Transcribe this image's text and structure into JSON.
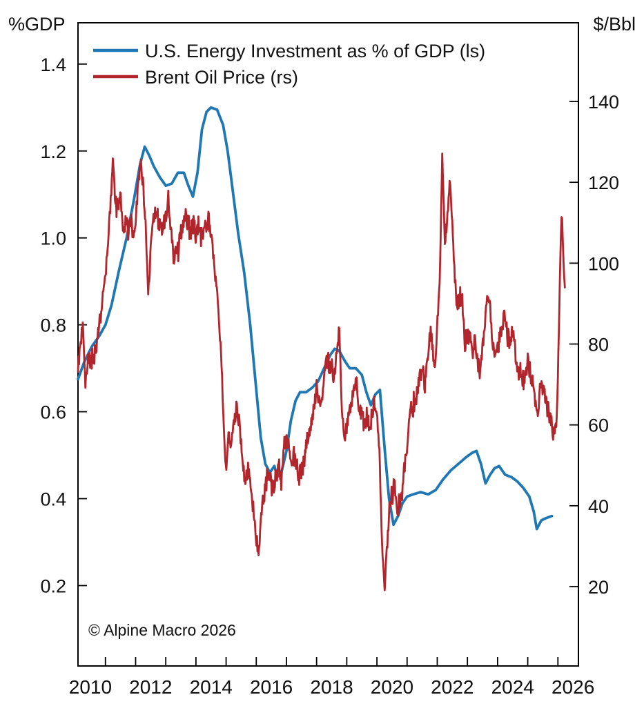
{
  "page": {
    "background": "#ffffff"
  },
  "axis_units": {
    "left": "%GDP",
    "right": "$/Bbl"
  },
  "legend": {
    "position": "top-left",
    "items": [
      {
        "label": "U.S. Energy Investment as % of GDP (ls)",
        "color": "#1f77b4"
      },
      {
        "label": "Brent Oil Price (rs)",
        "color": "#b1252c"
      }
    ]
  },
  "watermark": "© Alpine Macro 2026",
  "chart_data": {
    "type": "line",
    "title": "",
    "grid": false,
    "legend_position": "top-left",
    "x_axis": {
      "range": [
        2010.09,
        2026.68
      ],
      "tick_years": [
        2011,
        2012,
        2013,
        2014,
        2015,
        2016,
        2017,
        2018,
        2019,
        2020,
        2021,
        2022,
        2023,
        2024,
        2025,
        2026
      ],
      "label_years": [
        2010,
        2012,
        2014,
        2016,
        2018,
        2020,
        2022,
        2024,
        2026
      ],
      "labels_centered_mid_year": true
    },
    "left_axis": {
      "unit": "%GDP",
      "range": [
        0.015,
        1.495
      ],
      "ticks": [
        0.2,
        0.4,
        0.6,
        0.8,
        1.0,
        1.2,
        1.4
      ]
    },
    "right_axis": {
      "unit": "$/Bbl",
      "range": [
        0.37,
        159.46
      ],
      "ticks": [
        20,
        40,
        60,
        80,
        100,
        120,
        140
      ]
    },
    "series": [
      {
        "name": "U.S. Energy Investment as % of GDP",
        "scale": "left",
        "color": "#1f77b4",
        "points": [
          [
            2010.09,
            0.675
          ],
          [
            2010.3,
            0.715
          ],
          [
            2010.55,
            0.75
          ],
          [
            2010.8,
            0.775
          ],
          [
            2011.0,
            0.8
          ],
          [
            2011.2,
            0.845
          ],
          [
            2011.45,
            0.925
          ],
          [
            2011.7,
            1.0
          ],
          [
            2011.95,
            1.09
          ],
          [
            2012.15,
            1.17
          ],
          [
            2012.3,
            1.21
          ],
          [
            2012.45,
            1.19
          ],
          [
            2012.6,
            1.165
          ],
          [
            2012.8,
            1.14
          ],
          [
            2013.0,
            1.12
          ],
          [
            2013.2,
            1.125
          ],
          [
            2013.4,
            1.15
          ],
          [
            2013.6,
            1.15
          ],
          [
            2013.75,
            1.12
          ],
          [
            2013.9,
            1.095
          ],
          [
            2014.05,
            1.15
          ],
          [
            2014.2,
            1.25
          ],
          [
            2014.35,
            1.29
          ],
          [
            2014.5,
            1.3
          ],
          [
            2014.7,
            1.295
          ],
          [
            2014.9,
            1.26
          ],
          [
            2015.05,
            1.2
          ],
          [
            2015.2,
            1.12
          ],
          [
            2015.4,
            1.01
          ],
          [
            2015.6,
            0.92
          ],
          [
            2015.8,
            0.8
          ],
          [
            2016.0,
            0.65
          ],
          [
            2016.15,
            0.54
          ],
          [
            2016.3,
            0.48
          ],
          [
            2016.45,
            0.46
          ],
          [
            2016.6,
            0.475
          ],
          [
            2016.7,
            0.45
          ],
          [
            2016.85,
            0.465
          ],
          [
            2017.0,
            0.51
          ],
          [
            2017.15,
            0.58
          ],
          [
            2017.3,
            0.625
          ],
          [
            2017.45,
            0.645
          ],
          [
            2017.65,
            0.645
          ],
          [
            2017.85,
            0.655
          ],
          [
            2018.05,
            0.67
          ],
          [
            2018.25,
            0.7
          ],
          [
            2018.45,
            0.73
          ],
          [
            2018.6,
            0.745
          ],
          [
            2018.75,
            0.74
          ],
          [
            2018.95,
            0.715
          ],
          [
            2019.1,
            0.7
          ],
          [
            2019.3,
            0.7
          ],
          [
            2019.5,
            0.685
          ],
          [
            2019.65,
            0.645
          ],
          [
            2019.8,
            0.615
          ],
          [
            2019.95,
            0.64
          ],
          [
            2020.1,
            0.65
          ],
          [
            2020.25,
            0.52
          ],
          [
            2020.4,
            0.4
          ],
          [
            2020.55,
            0.34
          ],
          [
            2020.7,
            0.36
          ],
          [
            2020.85,
            0.39
          ],
          [
            2021.0,
            0.405
          ],
          [
            2021.2,
            0.41
          ],
          [
            2021.45,
            0.415
          ],
          [
            2021.7,
            0.41
          ],
          [
            2021.95,
            0.42
          ],
          [
            2022.2,
            0.445
          ],
          [
            2022.45,
            0.465
          ],
          [
            2022.7,
            0.48
          ],
          [
            2022.95,
            0.495
          ],
          [
            2023.15,
            0.505
          ],
          [
            2023.3,
            0.51
          ],
          [
            2023.45,
            0.48
          ],
          [
            2023.6,
            0.435
          ],
          [
            2023.75,
            0.455
          ],
          [
            2023.9,
            0.47
          ],
          [
            2024.05,
            0.475
          ],
          [
            2024.25,
            0.455
          ],
          [
            2024.45,
            0.45
          ],
          [
            2024.65,
            0.44
          ],
          [
            2024.85,
            0.425
          ],
          [
            2025.05,
            0.405
          ],
          [
            2025.2,
            0.37
          ],
          [
            2025.3,
            0.33
          ],
          [
            2025.45,
            0.35
          ],
          [
            2025.6,
            0.355
          ],
          [
            2025.8,
            0.36
          ]
        ]
      },
      {
        "name": "Brent Oil Price",
        "scale": "right",
        "color": "#b1252c",
        "monthly_start_year": 2010.0,
        "monthly_values": [
          77,
          74,
          79,
          85,
          70,
          75,
          76,
          77,
          78,
          83,
          86,
          92,
          97,
          104,
          115,
          125,
          114,
          113,
          117,
          108,
          110,
          108,
          111,
          108,
          111,
          119,
          124,
          119,
          109,
          92,
          103,
          110,
          113,
          111,
          109,
          109,
          112,
          116,
          108,
          102,
          103,
          103,
          108,
          110,
          111,
          109,
          108,
          110,
          107,
          109,
          107,
          107,
          109,
          112,
          106,
          101,
          96,
          87,
          78,
          61,
          48,
          58,
          55,
          59,
          64,
          62,
          56,
          47,
          48,
          48,
          44,
          38,
          31,
          28,
          39,
          42,
          46,
          48,
          45,
          46,
          47,
          50,
          45,
          54,
          55,
          55,
          51,
          52,
          50,
          47,
          49,
          51,
          56,
          57,
          62,
          64,
          69,
          65,
          66,
          71,
          76,
          75,
          74,
          72,
          78,
          84,
          65,
          55,
          59,
          64,
          66,
          71,
          70,
          62,
          64,
          59,
          62,
          59,
          62,
          66,
          63,
          54,
          30,
          19,
          29,
          40,
          43,
          44,
          41,
          40,
          43,
          50,
          55,
          62,
          65,
          65,
          68,
          73,
          74,
          70,
          74,
          83,
          80,
          73,
          85,
          96,
          127,
          106,
          111,
          122,
          110,
          96,
          89,
          92,
          90,
          80,
          82,
          82,
          78,
          82,
          75,
          74,
          79,
          85,
          94,
          89,
          81,
          76,
          79,
          82,
          84,
          88,
          81,
          81,
          84,
          78,
          72,
          74,
          72,
          72,
          76,
          73,
          70,
          66,
          61,
          71,
          69,
          66,
          64,
          61,
          59,
          58
        ],
        "tail_points": [
          [
            2025.95,
            60
          ],
          [
            2026.0,
            72
          ],
          [
            2026.05,
            90
          ],
          [
            2026.1,
            109
          ],
          [
            2026.13,
            112
          ],
          [
            2026.17,
            103
          ],
          [
            2026.2,
            97
          ],
          [
            2026.23,
            94
          ]
        ],
        "noise_amplitude": 3.2
      }
    ]
  }
}
